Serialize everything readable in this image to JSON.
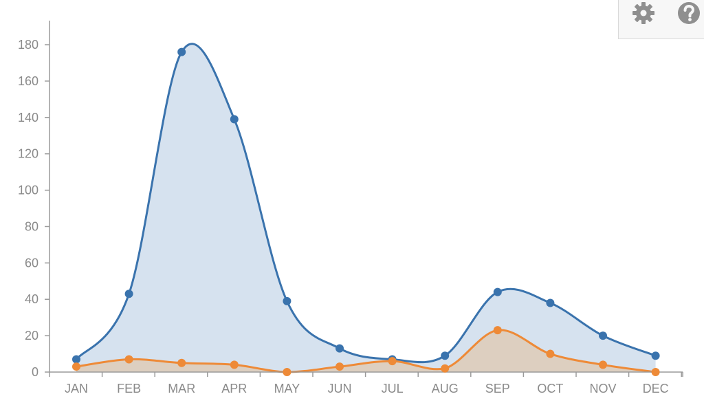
{
  "chart_data": {
    "type": "area",
    "categories": [
      "JAN",
      "FEB",
      "MAR",
      "APR",
      "MAY",
      "JUN",
      "JUL",
      "AUG",
      "SEP",
      "OCT",
      "NOV",
      "DEC"
    ],
    "series": [
      {
        "values": [
          7,
          43,
          176,
          139,
          39,
          13,
          7,
          9,
          44,
          38,
          20,
          9
        ],
        "color": "#3a73ad",
        "fill": "#d6e2ef"
      },
      {
        "values": [
          3,
          7,
          5,
          4,
          0,
          3,
          6,
          2,
          23,
          10,
          4,
          0
        ],
        "color": "#ee8a37",
        "fill": "#ddcfc0"
      }
    ],
    "yticks": [
      0,
      20,
      40,
      60,
      80,
      100,
      120,
      140,
      160,
      180
    ],
    "ylim": [
      0,
      180
    ],
    "grid": false,
    "title": "",
    "xlabel": "",
    "ylabel": ""
  },
  "toolbar": {
    "icons": [
      "gear-icon",
      "help-icon"
    ]
  }
}
